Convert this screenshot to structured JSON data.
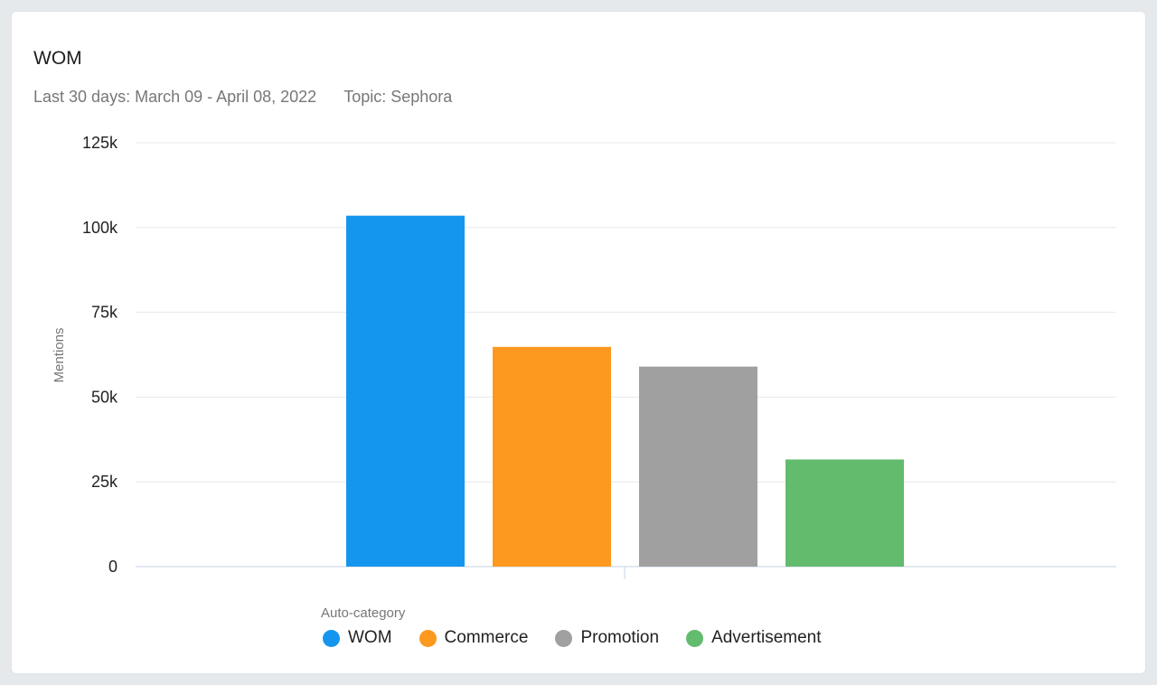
{
  "card": {
    "title": "WOM",
    "date_range": "Last 30 days: March 09 - April 08, 2022",
    "topic": "Topic: Sephora"
  },
  "legend": {
    "title": "Auto-category"
  },
  "chart_data": {
    "type": "bar",
    "title": "WOM",
    "xlabel": "",
    "ylabel": "Mentions",
    "ylim": [
      0,
      125000
    ],
    "yticks": [
      0,
      25000,
      50000,
      75000,
      100000,
      125000
    ],
    "ytick_labels": [
      "0",
      "25k",
      "50k",
      "75k",
      "100k",
      "125k"
    ],
    "grid": true,
    "legend_position": "bottom",
    "categories": [
      "WOM",
      "Commerce",
      "Promotion",
      "Advertisement"
    ],
    "values": [
      103500,
      64800,
      59000,
      31600
    ],
    "colors": [
      "#1596ee",
      "#fc991e",
      "#a0a0a0",
      "#63bb6d"
    ]
  }
}
